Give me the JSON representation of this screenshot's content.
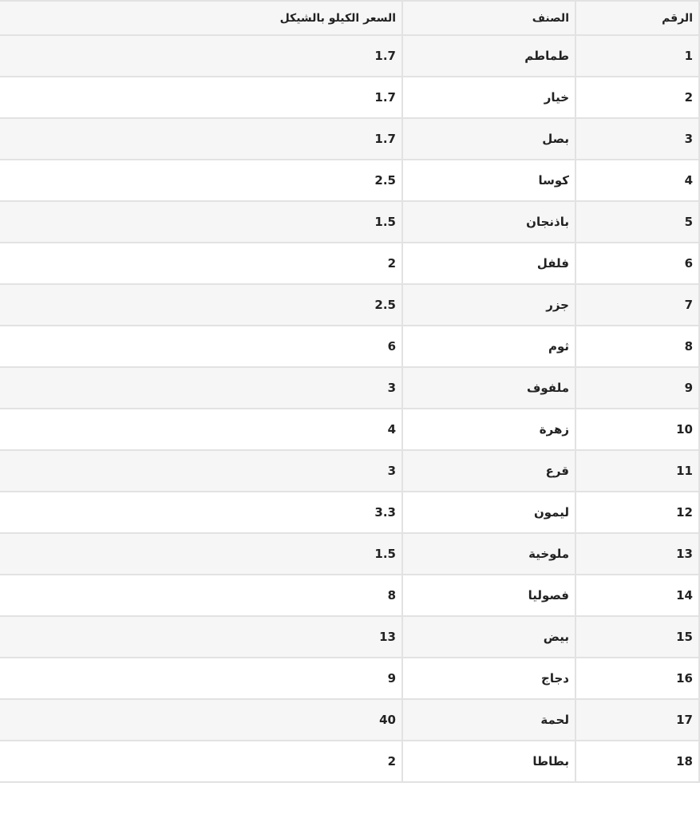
{
  "headers": [
    "الرقم",
    "الصنف",
    "السعر الكيلو بالشيكل"
  ],
  "rows": [
    [
      "1",
      "طماطم",
      "1.7"
    ],
    [
      "2",
      "خيار",
      "1.7"
    ],
    [
      "3",
      "بصل",
      "1.7"
    ],
    [
      "4",
      "كوسا",
      "2.5"
    ],
    [
      "5",
      "باذنجان",
      "1.5"
    ],
    [
      "6",
      "فلفل",
      "2"
    ],
    [
      "7",
      "جزر",
      "2.5"
    ],
    [
      "8",
      "ثوم",
      "6"
    ],
    [
      "9",
      "ملفوف",
      "3"
    ],
    [
      "10",
      "زهرة",
      "4"
    ],
    [
      "11",
      "قرع",
      "3"
    ],
    [
      "12",
      "ليمون",
      "3.3"
    ],
    [
      "13",
      "ملوخية",
      "1.5"
    ],
    [
      "14",
      "فصوليا",
      "8"
    ],
    [
      "15",
      "بيض",
      "13"
    ],
    [
      "16",
      "دجاج",
      "9"
    ],
    [
      "17",
      "لحمة",
      "40"
    ],
    [
      "18",
      "بطاطا",
      "2"
    ]
  ]
}
